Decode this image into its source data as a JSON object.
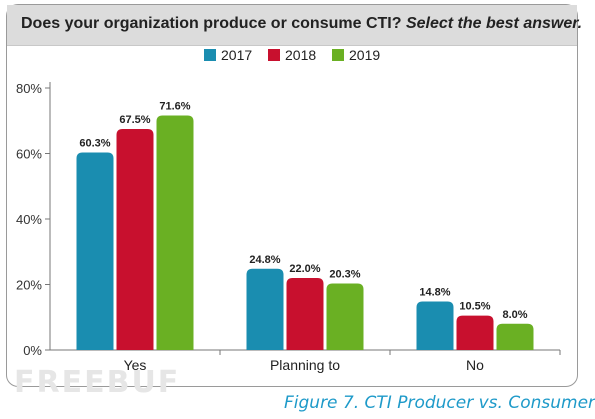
{
  "header": {
    "question": "Does your organization produce or consume CTI?",
    "instruction": "Select the best answer."
  },
  "caption": "Figure 7. CTI Producer vs. Consumer",
  "watermark": "FREEBUF",
  "chart_data": {
    "type": "bar",
    "categories": [
      "Yes",
      "Planning to",
      "No"
    ],
    "series": [
      {
        "name": "2017",
        "color": "#1a8db0",
        "values": [
          60.3,
          24.8,
          14.8
        ]
      },
      {
        "name": "2018",
        "color": "#c8102e",
        "values": [
          67.5,
          22.0,
          10.5
        ]
      },
      {
        "name": "2019",
        "color": "#6ab023",
        "values": [
          71.6,
          20.3,
          8.0
        ]
      }
    ],
    "ylim": [
      0,
      80
    ],
    "yticks": [
      "0%",
      "20%",
      "40%",
      "60%",
      "80%"
    ],
    "data_labels": [
      [
        "60.3%",
        "24.8%",
        "14.8%"
      ],
      [
        "67.5%",
        "22.0%",
        "10.5%"
      ],
      [
        "71.6%",
        "20.3%",
        "8.0%"
      ]
    ],
    "legend_position": "top-center",
    "grid": false
  }
}
